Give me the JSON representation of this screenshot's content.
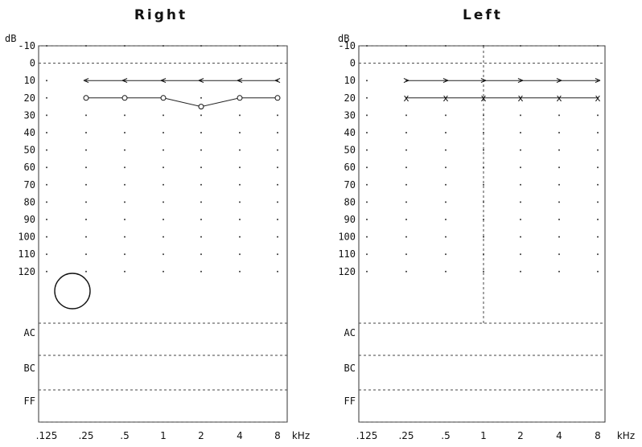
{
  "chart_data": [
    {
      "type": "line",
      "title": "Right",
      "ylabel": "dB",
      "x_tick_labels": [
        ".125",
        ".25",
        ".5",
        "1",
        "2",
        "4",
        "8",
        "kHz"
      ],
      "x": [
        0.125,
        0.25,
        0.5,
        1,
        2,
        4,
        8
      ],
      "y_tick_labels": [
        "-10",
        "0",
        "10",
        "20",
        "30",
        "40",
        "50",
        "60",
        "70",
        "80",
        "90",
        "100",
        "110",
        "120"
      ],
      "ylim": [
        -10,
        120
      ],
      "series": [
        {
          "marker": "<",
          "x": [
            0.25,
            0.5,
            1,
            2,
            4,
            8
          ],
          "values": [
            10,
            10,
            10,
            10,
            10,
            10
          ]
        },
        {
          "marker": "o",
          "x": [
            0.25,
            0.5,
            1,
            2,
            4,
            8
          ],
          "values": [
            20,
            20,
            20,
            25,
            20,
            20
          ]
        }
      ],
      "table_rows": [
        "AC",
        "BC",
        "FF"
      ]
    },
    {
      "type": "line",
      "title": "Left",
      "ylabel": "dB",
      "x_tick_labels": [
        ".125",
        ".25",
        ".5",
        "1",
        "2",
        "4",
        "8",
        "kHz"
      ],
      "x": [
        0.125,
        0.25,
        0.5,
        1,
        2,
        4,
        8
      ],
      "y_tick_labels": [
        "-10",
        "0",
        "10",
        "20",
        "30",
        "40",
        "50",
        "60",
        "70",
        "80",
        "90",
        "100",
        "110",
        "120"
      ],
      "ylim": [
        -10,
        120
      ],
      "series": [
        {
          "marker": ">",
          "x": [
            0.25,
            0.5,
            1,
            2,
            4,
            8
          ],
          "values": [
            10,
            10,
            10,
            10,
            10,
            10
          ]
        },
        {
          "marker": "x",
          "x": [
            0.25,
            0.5,
            1,
            2,
            4,
            8
          ],
          "values": [
            20,
            20,
            20,
            20,
            20,
            20
          ]
        }
      ],
      "table_rows": [
        "AC",
        "BC",
        "FF"
      ]
    }
  ]
}
